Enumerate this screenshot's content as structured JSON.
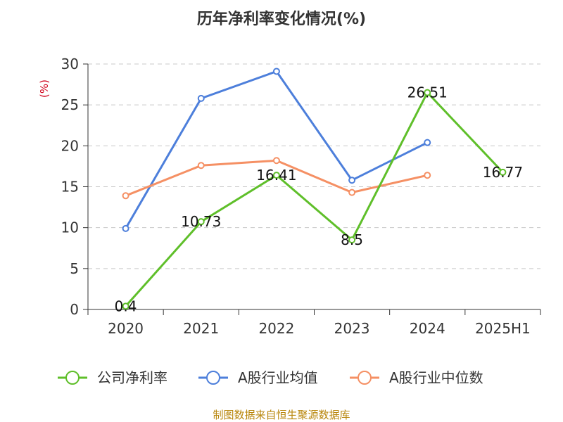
{
  "chart_data": {
    "type": "line",
    "title": "历年净利率变化情况(%)",
    "unit_label": "(%)",
    "categories": [
      "2020",
      "2021",
      "2022",
      "2023",
      "2024",
      "2025H1"
    ],
    "ylim": [
      0,
      30
    ],
    "yticks": [
      0,
      5,
      10,
      15,
      20,
      25,
      30
    ],
    "grid": true,
    "legend_position": "bottom",
    "series": [
      {
        "name": "公司净利率",
        "color": "#5fbf2a",
        "values": [
          0.4,
          10.73,
          16.41,
          8.5,
          26.51,
          16.77
        ],
        "labels": [
          "0.4",
          "10.73",
          "16.41",
          "8.5",
          "26.51",
          "16.77"
        ]
      },
      {
        "name": "A股行业均值",
        "color": "#4d7fdb",
        "values": [
          9.9,
          25.8,
          29.1,
          15.8,
          20.4,
          null
        ]
      },
      {
        "name": "A股行业中位数",
        "color": "#f59064",
        "values": [
          13.9,
          17.6,
          18.2,
          14.3,
          16.4,
          null
        ]
      }
    ]
  },
  "source": "制图数据来自恒生聚源数据库"
}
